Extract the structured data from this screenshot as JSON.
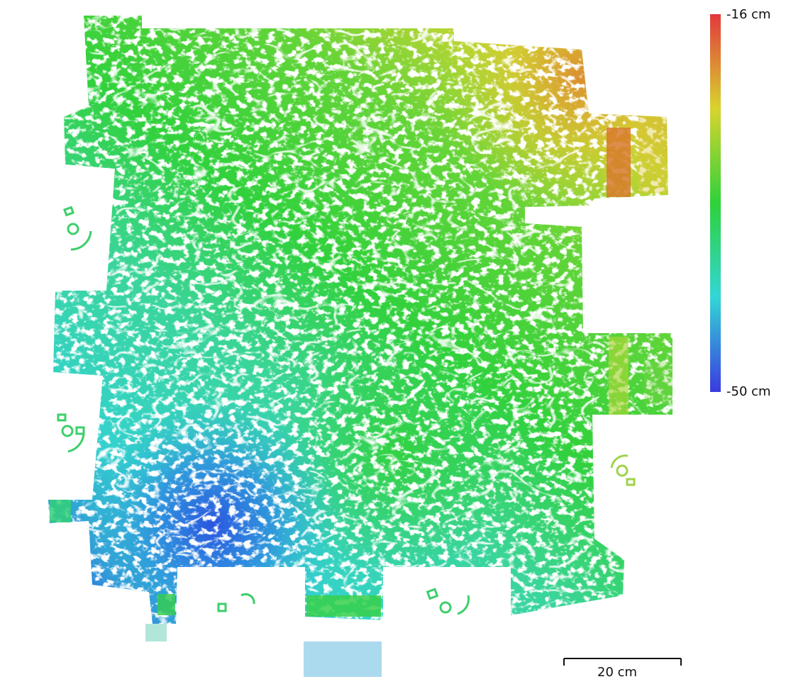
{
  "colorbar": {
    "max_label": "-16 cm",
    "min_label": "-50 cm",
    "max_value": -16,
    "min_value": -50,
    "unit": "cm",
    "colors": [
      "#3a3adf",
      "#33d6d6",
      "#2fd13a",
      "#d8d42e",
      "#e2393c"
    ]
  },
  "scale_bar": {
    "label": "20 cm",
    "length_cm": 20
  }
}
